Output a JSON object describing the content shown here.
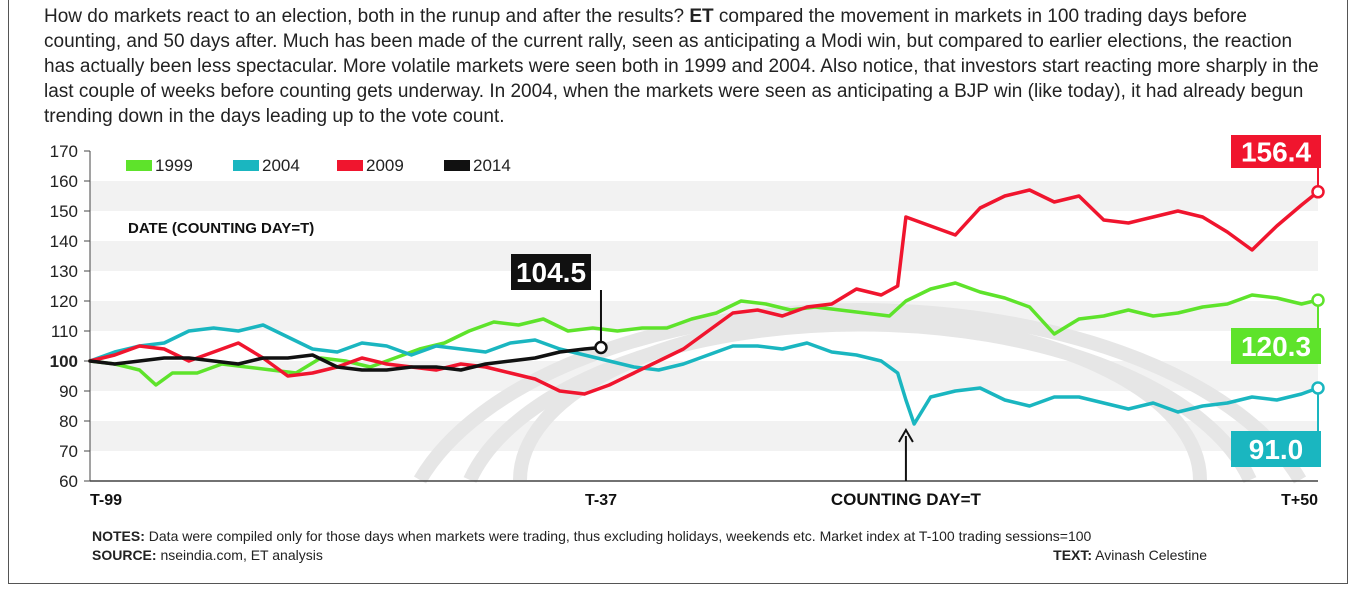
{
  "intro": {
    "before_et": "How do markets react to an election, both in the runup and after the results? ",
    "et": "ET",
    "after_et": " compared the movement in markets in 100 trading days before counting, and 50 days after. Much has been made of the current rally, seen as anticipating a Modi win, but compared to earlier elections, the reaction has actually been less spectacular. More volatile markets were seen both in 1999 and 2004. Also notice, that investors start reacting more sharply in the last couple of weeks before counting gets underway. In 2004, when the markets were seen as anticipating a BJP win (like today), it had already begun trending down in the days leading up to the vote count."
  },
  "notes": {
    "notes_label": "NOTES:",
    "notes_text": " Data were compiled only for those days when markets were trading, thus excluding holidays, weekends etc. Market index at T-100 trading sessions=100",
    "source_label": "SOURCE:",
    "source_text": " nseindia.com, ET analysis",
    "text_label": "TEXT:",
    "text_text": " Avinash Celestine"
  },
  "chart_data": {
    "type": "line",
    "xlabel": "DATE (COUNTING DAY=T)",
    "ylim": [
      60,
      170
    ],
    "yticks": [
      60,
      70,
      80,
      90,
      100,
      110,
      120,
      130,
      140,
      150,
      160,
      170
    ],
    "xlim": [
      -99,
      50
    ],
    "xtick_labels": [
      {
        "x": -99,
        "label": "T-99"
      },
      {
        "x": -37,
        "label": "T-37"
      },
      {
        "x": 50,
        "label": "T+50"
      }
    ],
    "counting_day": {
      "x": 0,
      "label": "COUNTING  DAY=T"
    },
    "legend_position": "top-left",
    "series": [
      {
        "name": "1999",
        "color": "#5ee32b",
        "end_label": "120.3",
        "x": [
          -99,
          -96,
          -93,
          -91,
          -89,
          -86,
          -83,
          -80,
          -77,
          -74,
          -71,
          -68,
          -65,
          -62,
          -59,
          -56,
          -53,
          -50,
          -47,
          -44,
          -41,
          -38,
          -35,
          -32,
          -29,
          -26,
          -23,
          -20,
          -17,
          -14,
          -11,
          -8,
          -5,
          -2,
          0,
          3,
          6,
          9,
          12,
          15,
          18,
          21,
          24,
          27,
          30,
          33,
          36,
          39,
          42,
          45,
          48,
          50
        ],
        "y": [
          100,
          99,
          97,
          92,
          96,
          96,
          99,
          98,
          97,
          96,
          101,
          100,
          98,
          101,
          104,
          106,
          110,
          113,
          112,
          114,
          110,
          111,
          110,
          111,
          111,
          114,
          116,
          120,
          119,
          117,
          118,
          117,
          116,
          115,
          120,
          124,
          126,
          123,
          121,
          118,
          109,
          114,
          115,
          117,
          115,
          116,
          118,
          119,
          122,
          121,
          119,
          120.3
        ]
      },
      {
        "name": "2004",
        "color": "#1ab6c0",
        "end_label": "91.0",
        "x": [
          -99,
          -96,
          -93,
          -90,
          -87,
          -84,
          -81,
          -78,
          -75,
          -72,
          -69,
          -66,
          -63,
          -60,
          -57,
          -54,
          -51,
          -48,
          -45,
          -42,
          -39,
          -36,
          -33,
          -30,
          -27,
          -24,
          -21,
          -18,
          -15,
          -12,
          -9,
          -6,
          -3,
          -1,
          0,
          1,
          3,
          6,
          9,
          12,
          15,
          18,
          21,
          24,
          27,
          30,
          33,
          36,
          39,
          42,
          45,
          48,
          50
        ],
        "y": [
          100,
          103,
          105,
          106,
          110,
          111,
          110,
          112,
          108,
          104,
          103,
          106,
          105,
          102,
          105,
          104,
          103,
          106,
          107,
          104,
          102,
          100,
          98,
          97,
          99,
          102,
          105,
          105,
          104,
          106,
          103,
          102,
          100,
          96,
          87,
          79,
          88,
          90,
          91,
          87,
          85,
          88,
          88,
          86,
          84,
          86,
          83,
          85,
          86,
          88,
          87,
          89,
          91.0
        ]
      },
      {
        "name": "2009",
        "color": "#f0152e",
        "end_label": "156.4",
        "x": [
          -99,
          -96,
          -93,
          -90,
          -87,
          -84,
          -81,
          -78,
          -75,
          -72,
          -69,
          -66,
          -63,
          -60,
          -57,
          -54,
          -51,
          -48,
          -45,
          -42,
          -39,
          -36,
          -33,
          -30,
          -27,
          -24,
          -21,
          -18,
          -15,
          -12,
          -9,
          -6,
          -3,
          -1,
          0,
          3,
          6,
          9,
          12,
          15,
          18,
          21,
          24,
          27,
          30,
          33,
          36,
          39,
          42,
          45,
          48,
          50
        ],
        "y": [
          100,
          102,
          105,
          104,
          100,
          103,
          106,
          101,
          95,
          96,
          98,
          101,
          99,
          98,
          97,
          99,
          98,
          96,
          94,
          90,
          89,
          92,
          96,
          100,
          104,
          110,
          116,
          117,
          115,
          118,
          119,
          124,
          122,
          125,
          148,
          145,
          142,
          151,
          155,
          157,
          153,
          155,
          147,
          146,
          148,
          150,
          148,
          143,
          137,
          145,
          152,
          156.4
        ]
      },
      {
        "name": "2014",
        "color": "#111111",
        "end_label": "104.5",
        "x": [
          -99,
          -96,
          -93,
          -90,
          -87,
          -84,
          -81,
          -78,
          -75,
          -72,
          -69,
          -66,
          -63,
          -60,
          -57,
          -54,
          -51,
          -48,
          -45,
          -42,
          -39,
          -37
        ],
        "y": [
          100,
          99,
          100,
          101,
          101,
          100,
          99,
          101,
          101,
          102,
          98,
          97,
          97,
          98,
          98,
          97,
          99,
          100,
          101,
          103,
          104,
          104.5
        ]
      }
    ]
  }
}
